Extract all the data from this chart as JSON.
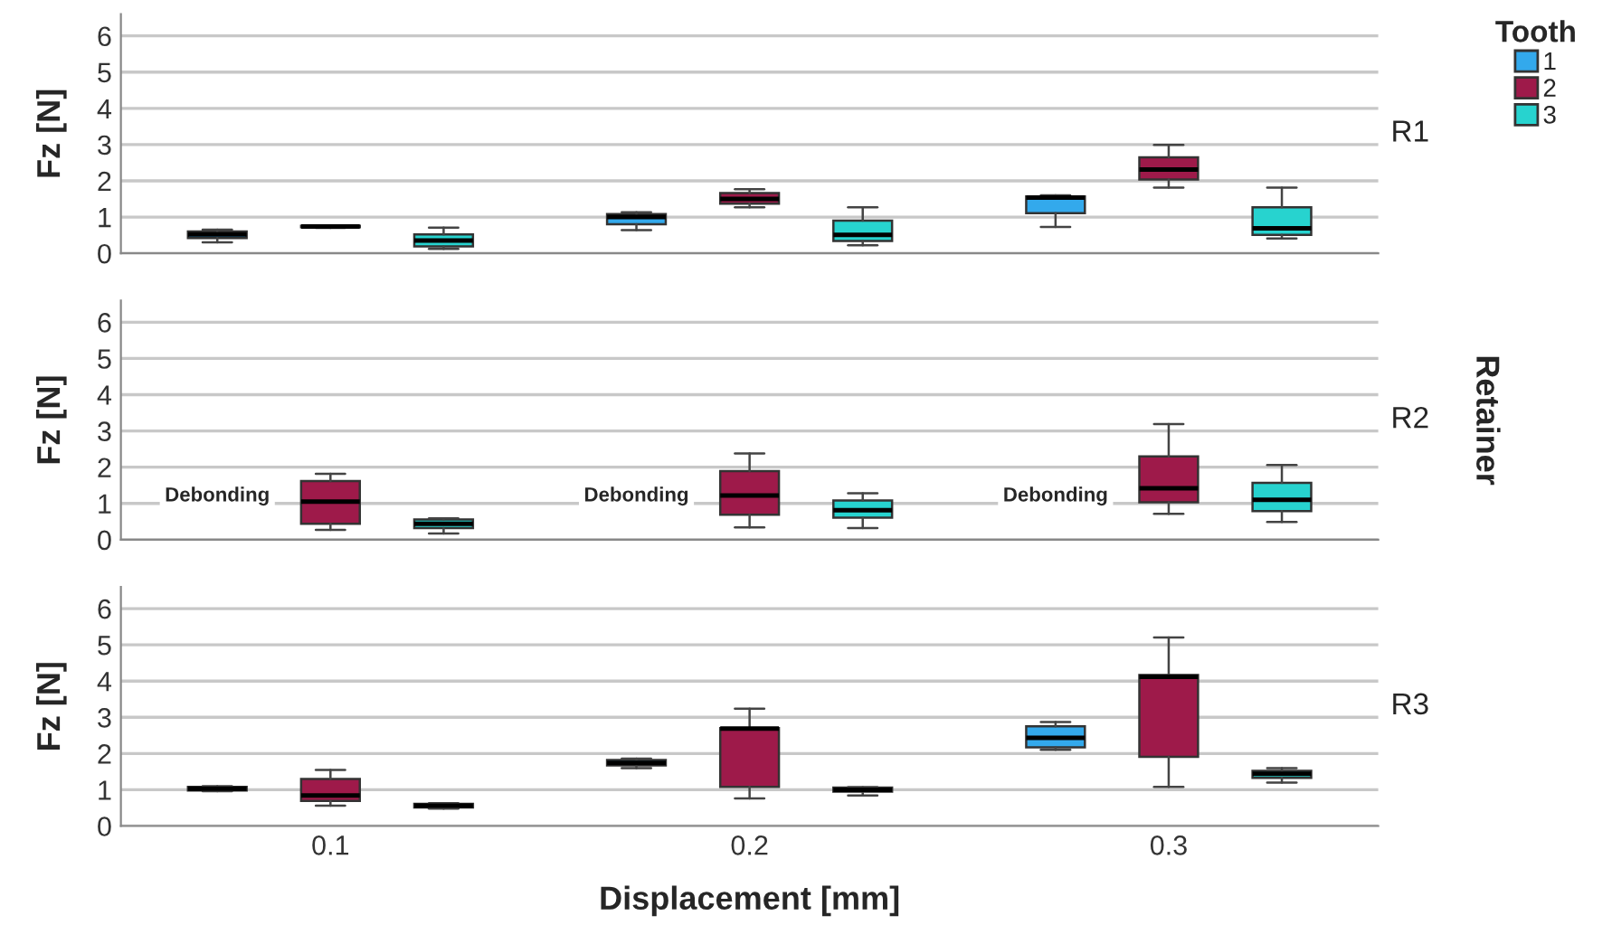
{
  "chart_data": [
    {
      "type": "box",
      "ylabel": "Fz [N]",
      "y2label": "R1",
      "legend_title": "Tooth",
      "legend": "right",
      "grid": "y",
      "tick_labels": "y",
      "categories": [
        "0.1",
        "0.2",
        "0.3"
      ],
      "ylim": [
        0,
        6.6
      ],
      "yticks": [
        0,
        1,
        2,
        3,
        4,
        5,
        6
      ],
      "series": [
        {
          "name": "1",
          "color": "#33a9ec",
          "boxes": [
            {
              "low": 0.3,
              "q1": 0.42,
              "median": 0.52,
              "q3": 0.6,
              "high": 0.65
            },
            {
              "low": 0.64,
              "q1": 0.8,
              "median": 1.0,
              "q3": 1.08,
              "high": 1.13
            },
            {
              "low": 0.73,
              "q1": 1.11,
              "median": 1.54,
              "q3": 1.57,
              "high": 1.6
            }
          ]
        },
        {
          "name": "2",
          "color": "#9e1a4a",
          "boxes": [
            {
              "low": 0.7,
              "q1": 0.72,
              "median": 0.74,
              "q3": 0.76,
              "high": 0.77
            },
            {
              "low": 1.27,
              "q1": 1.37,
              "median": 1.5,
              "q3": 1.66,
              "high": 1.77
            },
            {
              "low": 1.81,
              "q1": 2.04,
              "median": 2.31,
              "q3": 2.65,
              "high": 2.99
            }
          ]
        },
        {
          "name": "3",
          "color": "#27d3cf",
          "boxes": [
            {
              "low": 0.12,
              "q1": 0.19,
              "median": 0.35,
              "q3": 0.52,
              "high": 0.71
            },
            {
              "low": 0.22,
              "q1": 0.34,
              "median": 0.51,
              "q3": 0.9,
              "high": 1.27
            },
            {
              "low": 0.41,
              "q1": 0.51,
              "median": 0.69,
              "q3": 1.27,
              "high": 1.81
            }
          ]
        }
      ]
    },
    {
      "type": "box",
      "ylabel": "Fz [N]",
      "y2label": "R2",
      "grid": "y",
      "tick_labels": "y",
      "categories": [
        "0.1",
        "0.2",
        "0.3"
      ],
      "ylim": [
        0,
        6.6
      ],
      "yticks": [
        0,
        1,
        2,
        3,
        4,
        5,
        6
      ],
      "annotations": [
        "Debonding",
        "Debonding",
        "Debonding",
        "Retainer"
      ],
      "series": [
        {
          "boxes": [
            null,
            null,
            null
          ]
        },
        {
          "color": "#9e1a4a",
          "boxes": [
            {
              "low": 0.27,
              "q1": 0.44,
              "median": 1.05,
              "q3": 1.62,
              "high": 1.82
            },
            {
              "low": 0.34,
              "q1": 0.69,
              "median": 1.22,
              "q3": 1.89,
              "high": 2.38
            },
            {
              "low": 0.71,
              "q1": 1.03,
              "median": 1.42,
              "q3": 2.3,
              "high": 3.19
            }
          ]
        },
        {
          "color": "#27d3cf",
          "boxes": [
            {
              "low": 0.17,
              "q1": 0.32,
              "median": 0.44,
              "q3": 0.56,
              "high": 0.59
            },
            {
              "low": 0.32,
              "q1": 0.61,
              "median": 0.81,
              "q3": 1.08,
              "high": 1.28
            },
            {
              "low": 0.49,
              "q1": 0.79,
              "median": 1.1,
              "q3": 1.57,
              "high": 2.06
            }
          ]
        }
      ]
    },
    {
      "type": "box",
      "ylabel": "Fz [N]",
      "y2label": "R3",
      "xlabel": "Displacement [mm]",
      "grid": "y",
      "categories": [
        "0.1",
        "0.2",
        "0.3"
      ],
      "ylim": [
        0,
        6.6
      ],
      "yticks": [
        0,
        1,
        2,
        3,
        4,
        5,
        6
      ],
      "series": [
        {
          "color": "#33a9ec",
          "boxes": [
            {
              "low": 0.96,
              "q1": 0.98,
              "median": 1.03,
              "q3": 1.08,
              "high": 1.1
            },
            {
              "low": 1.6,
              "q1": 1.67,
              "median": 1.74,
              "q3": 1.82,
              "high": 1.86
            },
            {
              "low": 2.1,
              "q1": 2.17,
              "median": 2.43,
              "q3": 2.75,
              "high": 2.87
            }
          ]
        },
        {
          "color": "#9e1a4a",
          "boxes": [
            {
              "low": 0.56,
              "q1": 0.69,
              "median": 0.84,
              "q3": 1.3,
              "high": 1.55
            },
            {
              "low": 0.76,
              "q1": 1.08,
              "median": 2.69,
              "q3": 2.7,
              "high": 3.24
            },
            {
              "low": 1.08,
              "q1": 1.91,
              "median": 4.12,
              "q3": 4.17,
              "high": 5.2
            }
          ]
        },
        {
          "color": "#27d3cf",
          "boxes": [
            {
              "low": 0.48,
              "q1": 0.51,
              "median": 0.56,
              "q3": 0.61,
              "high": 0.63
            },
            {
              "low": 0.84,
              "q1": 0.95,
              "median": 1.0,
              "q3": 1.06,
              "high": 1.07
            },
            {
              "low": 1.2,
              "q1": 1.33,
              "median": 1.44,
              "q3": 1.52,
              "high": 1.6
            }
          ]
        }
      ]
    }
  ]
}
